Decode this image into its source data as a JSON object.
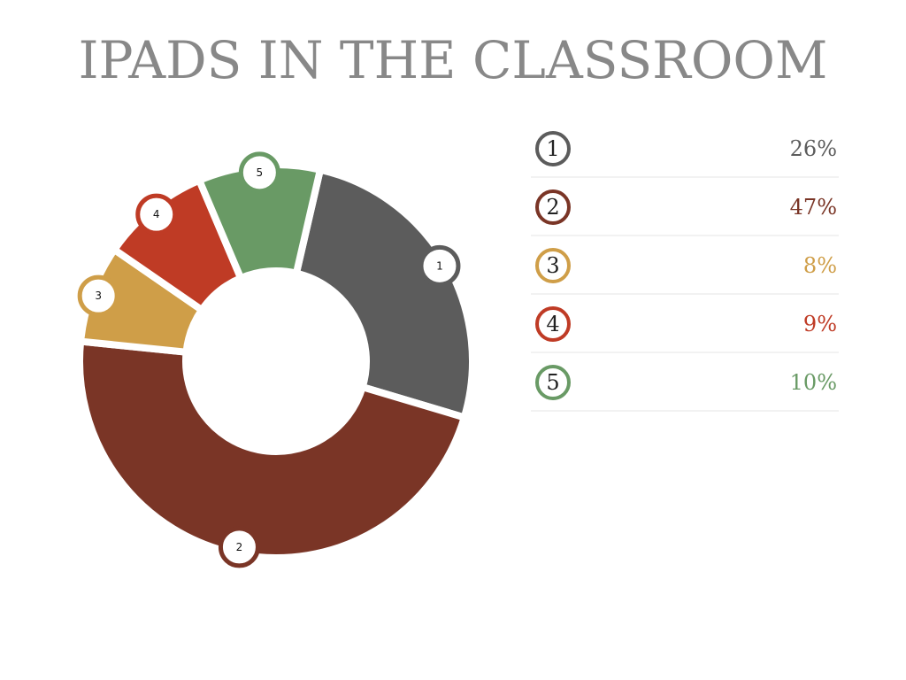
{
  "chart_data": {
    "type": "pie",
    "donut": true,
    "title": "IPADS IN THE CLASSROOM",
    "categories": [
      "1",
      "2",
      "3",
      "4",
      "5"
    ],
    "values": [
      26,
      47,
      8,
      9,
      10
    ],
    "value_labels": [
      "26%",
      "47%",
      "8%",
      "9%",
      "10%"
    ],
    "colors": [
      "#5c5c5c",
      "#7a3526",
      "#cf9e48",
      "#bf3b25",
      "#699a65"
    ]
  }
}
